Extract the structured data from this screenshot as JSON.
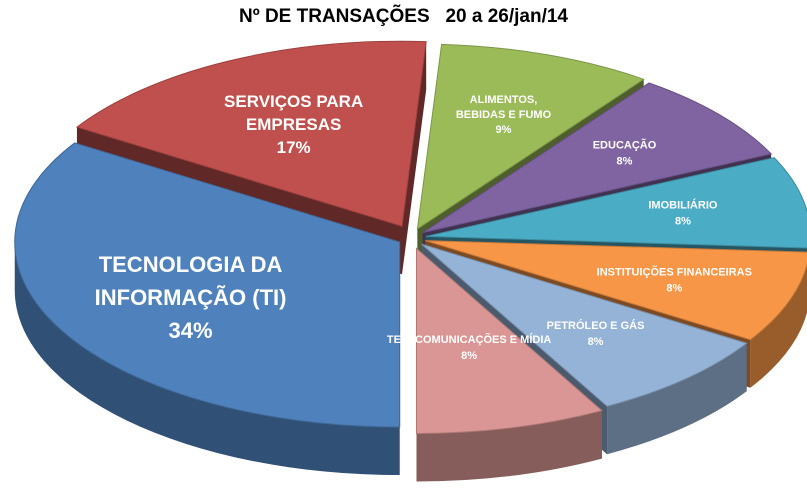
{
  "chart_data": {
    "type": "pie",
    "title": "Nº DE TRANSAÇÕES   20 a 26/jan/14",
    "slices": [
      {
        "label_lines": [
          "TECNOLOGIA DA",
          "INFORMAÇÃO (TI)"
        ],
        "value": 34,
        "pct": "34%",
        "color": "#4f81bd"
      },
      {
        "label_lines": [
          "SERVIÇOS PARA",
          "EMPRESAS"
        ],
        "value": 17,
        "pct": "17%",
        "color": "#c0504d"
      },
      {
        "label_lines": [
          "ALIMENTOS,",
          "BEBIDAS E FUMO"
        ],
        "value": 9,
        "pct": "9%",
        "color": "#9bbb59"
      },
      {
        "label_lines": [
          "EDUCAÇÃO"
        ],
        "value": 8,
        "pct": "8%",
        "color": "#8064a2"
      },
      {
        "label_lines": [
          "IMOBILIÁRIO"
        ],
        "value": 8,
        "pct": "8%",
        "color": "#4bacc6"
      },
      {
        "label_lines": [
          "INSTITUIÇÕES FINANCEIRAS"
        ],
        "value": 8,
        "pct": "8%",
        "color": "#f79646"
      },
      {
        "label_lines": [
          "PETRÓLEO E GÁS"
        ],
        "value": 8,
        "pct": "8%",
        "color": "#95b3d7"
      },
      {
        "label_lines": [
          "TELECOMUNICAÇÕES E MÍDIA"
        ],
        "value": 8,
        "pct": "8%",
        "color": "#d99694"
      }
    ]
  }
}
